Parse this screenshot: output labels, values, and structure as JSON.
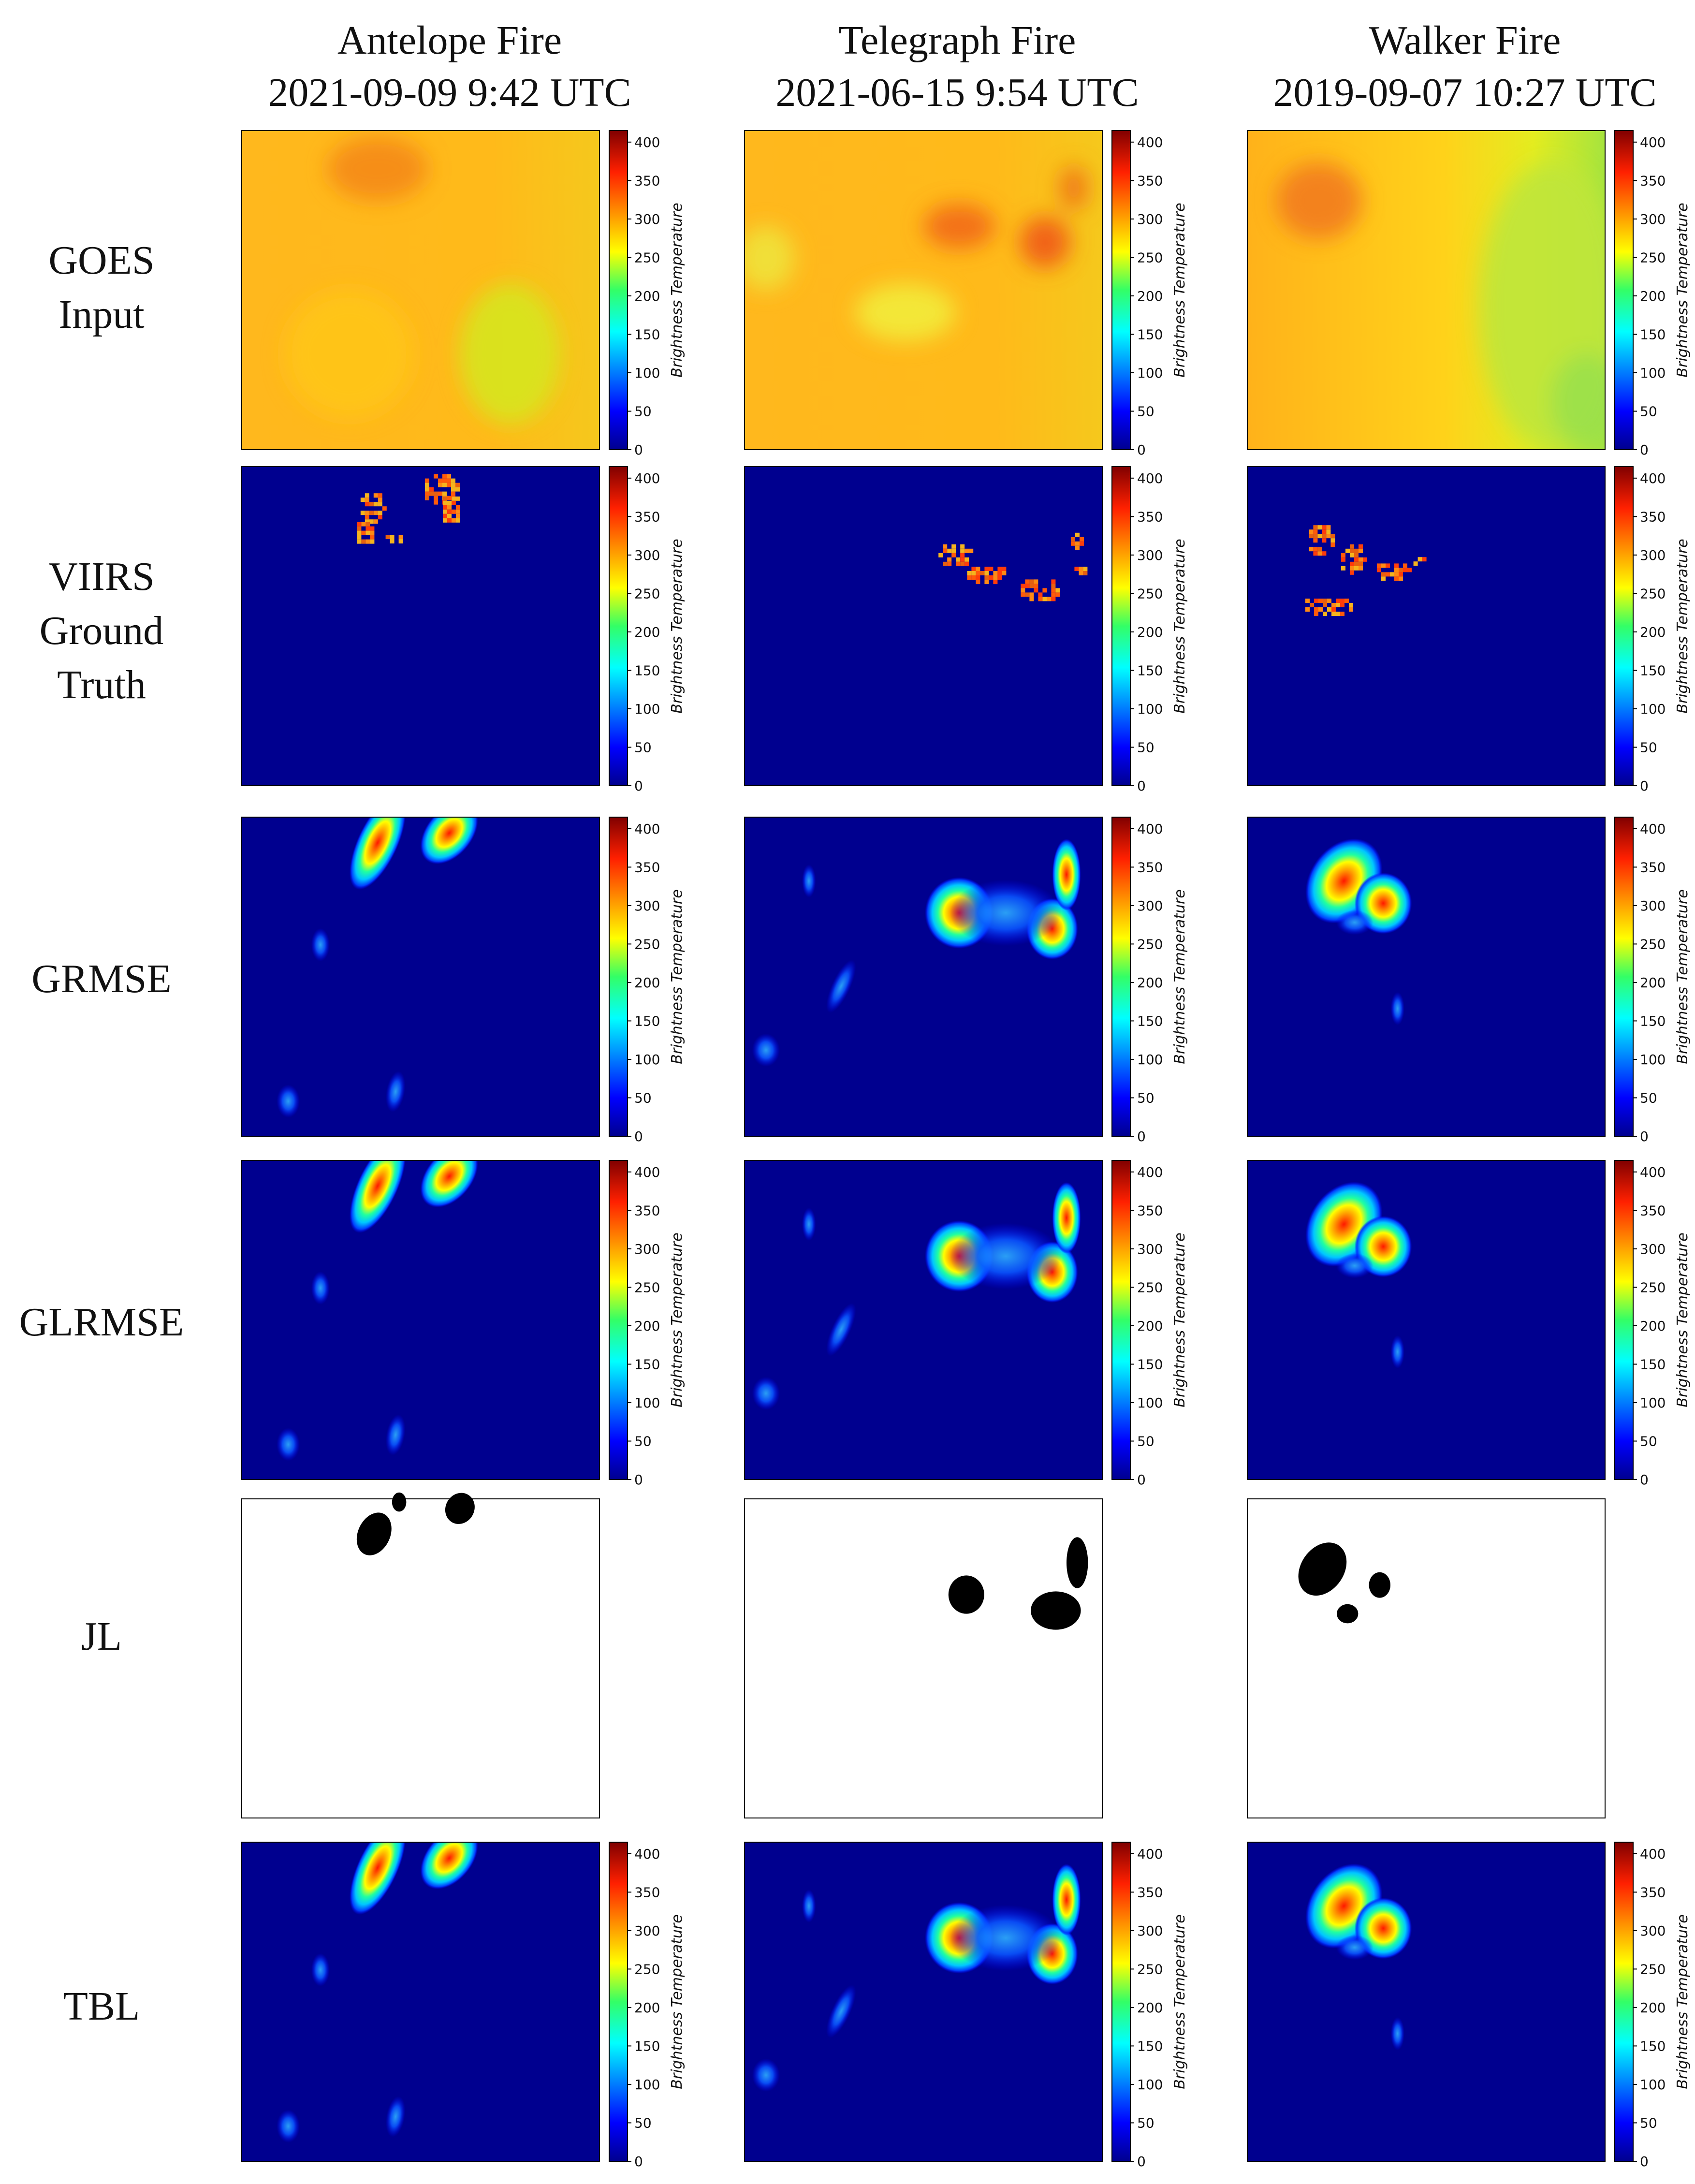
{
  "columns": [
    {
      "title": "Antelope Fire",
      "subtitle": "2021-09-09 9:42 UTC"
    },
    {
      "title": "Telegraph Fire",
      "subtitle": "2021-06-15 9:54 UTC"
    },
    {
      "title": "Walker Fire",
      "subtitle": "2019-09-07 10:27 UTC"
    }
  ],
  "rows": [
    {
      "label": "GOES\nInput",
      "kind": "goes",
      "colorbar": true
    },
    {
      "label": "VIIRS\nGround\nTruth",
      "kind": "viirs",
      "colorbar": true
    },
    {
      "label": "GRMSE",
      "kind": "heat",
      "colorbar": true
    },
    {
      "label": "GLRMSE",
      "kind": "heat",
      "colorbar": true
    },
    {
      "label": "JL",
      "kind": "binary",
      "colorbar": false
    },
    {
      "label": "TBL",
      "kind": "heat",
      "colorbar": true
    }
  ],
  "colorbar": {
    "label": "Brightness Temperature",
    "ticks": [
      "0",
      "50",
      "100",
      "150",
      "200",
      "250",
      "300",
      "350",
      "400"
    ],
    "colormap": "jet"
  }
}
